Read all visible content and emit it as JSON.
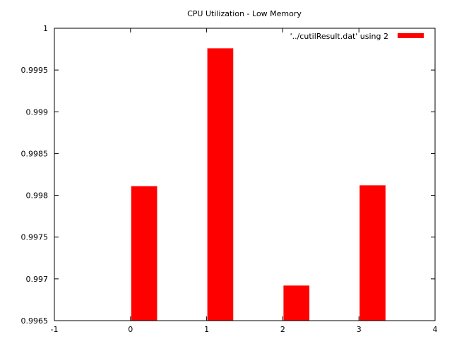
{
  "chart_data": {
    "type": "bar",
    "title": "CPU Utilization - Low Memory",
    "xlabel": "",
    "ylabel": "",
    "x": [
      0,
      1,
      2,
      3
    ],
    "series": [
      {
        "name": "'../cutilResult.dat' using 2",
        "color": "#ff0000",
        "values": [
          0.99811,
          0.99976,
          0.99692,
          0.99812
        ]
      }
    ],
    "xlim": [
      -1,
      4
    ],
    "ylim": [
      0.9965,
      1
    ],
    "xticks": [
      "-1",
      "0",
      "1",
      "2",
      "3",
      "4"
    ],
    "yticks": [
      "0.9965",
      "0.997",
      "0.9975",
      "0.998",
      "0.9985",
      "0.999",
      "0.9995",
      "1"
    ],
    "grid": false,
    "legend_position": "top-right"
  }
}
